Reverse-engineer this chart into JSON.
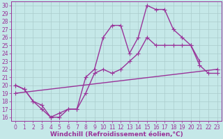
{
  "xlabel": "Windchill (Refroidissement éolien,°C)",
  "background_color": "#c5e8e8",
  "line_color": "#993399",
  "grid_color": "#aacccc",
  "xlim": [
    -0.5,
    23.5
  ],
  "ylim": [
    15.5,
    30.5
  ],
  "xticks": [
    0,
    1,
    2,
    3,
    4,
    5,
    6,
    7,
    8,
    9,
    10,
    11,
    12,
    13,
    14,
    15,
    16,
    17,
    18,
    19,
    20,
    21,
    22,
    23
  ],
  "yticks": [
    16,
    17,
    18,
    19,
    20,
    21,
    22,
    23,
    24,
    25,
    26,
    27,
    28,
    29,
    30
  ],
  "line1_x": [
    0,
    1,
    2,
    3,
    4,
    5,
    6,
    7,
    8,
    9,
    10,
    11,
    12,
    13,
    14,
    15,
    16,
    17,
    18,
    19,
    20,
    21,
    22,
    23
  ],
  "line1_y": [
    20,
    19.5,
    18,
    17,
    16,
    16.5,
    17,
    17,
    19,
    21.5,
    22,
    21.5,
    22,
    23,
    24,
    26,
    25,
    25,
    25,
    25,
    25,
    22.5,
    21.5,
    21.5
  ],
  "line2_x": [
    0,
    1,
    2,
    3,
    4,
    5,
    6,
    7,
    8,
    9,
    10,
    11,
    12,
    13,
    14,
    15,
    16,
    17,
    18,
    19,
    20,
    21,
    22,
    23
  ],
  "line2_y": [
    20,
    19.5,
    18,
    17.5,
    16,
    16,
    17,
    17,
    21,
    22,
    26,
    27.5,
    27.5,
    24,
    26,
    30,
    29.5,
    29.5,
    27,
    26,
    25,
    23,
    null,
    null
  ],
  "line3_x": [
    0,
    23
  ],
  "line3_y": [
    19,
    22
  ],
  "marker": "+",
  "markersize": 4,
  "linewidth": 1.0,
  "tick_fontsize": 5.5,
  "label_fontsize": 6.5
}
